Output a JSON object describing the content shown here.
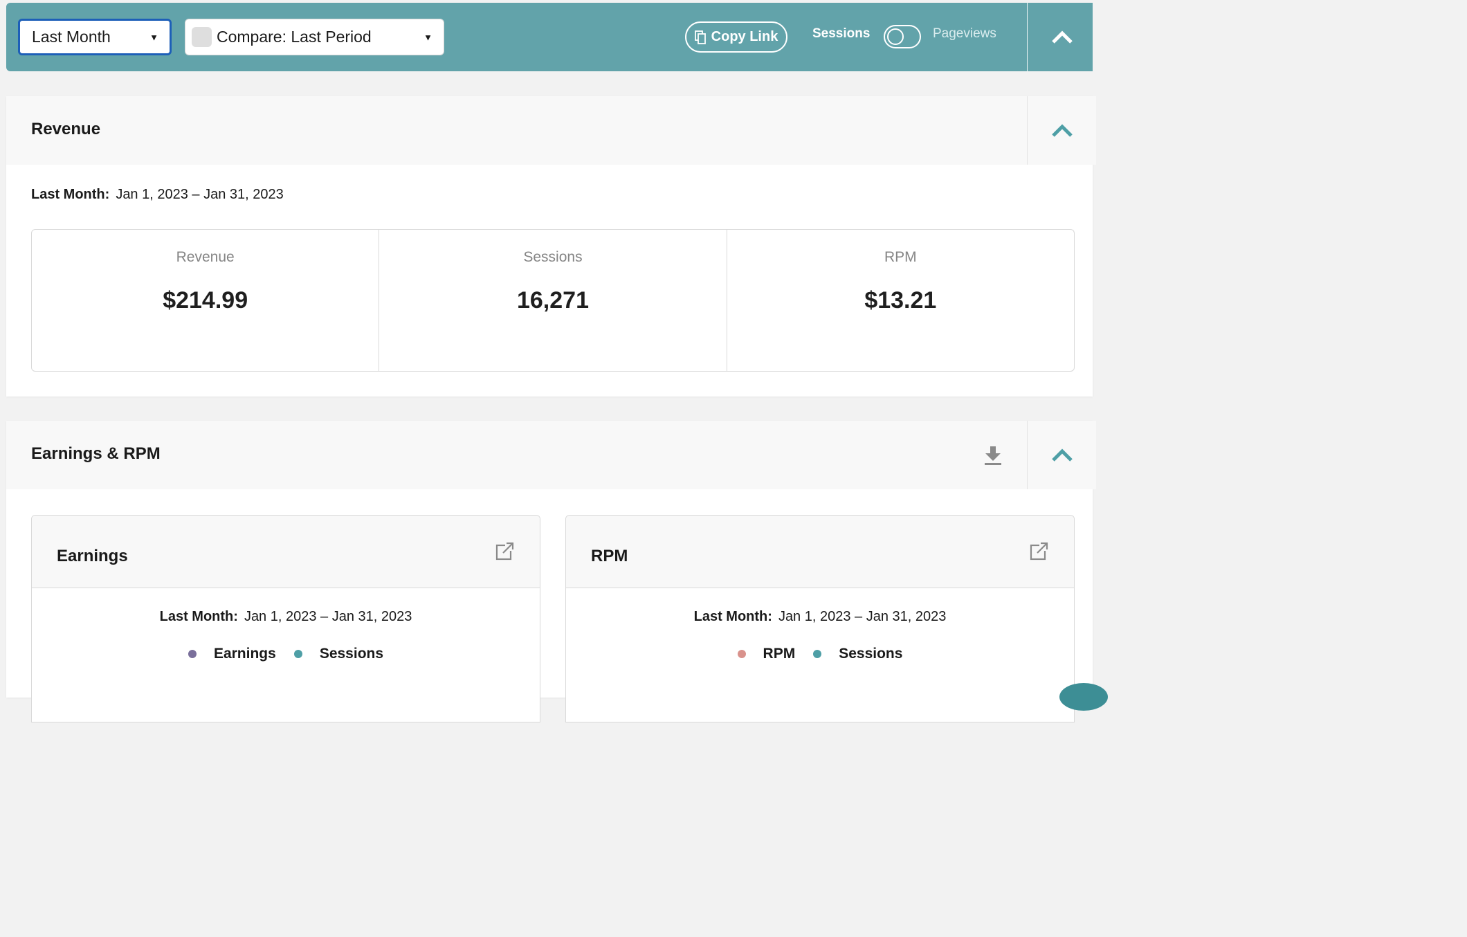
{
  "toolbar": {
    "period_select": "Last Month",
    "compare_select": "Compare: Last Period",
    "copy_link": "Copy Link",
    "toggle_left": "Sessions",
    "toggle_right": "Pageviews"
  },
  "revenue_card": {
    "title": "Revenue",
    "date_label": "Last Month:",
    "date_range": "Jan 1, 2023 – Jan 31, 2023",
    "kpis": [
      {
        "label": "Revenue",
        "value": "$214.99"
      },
      {
        "label": "Sessions",
        "value": "16,271"
      },
      {
        "label": "RPM",
        "value": "$13.21"
      }
    ]
  },
  "earnings_rpm_card": {
    "title": "Earnings & RPM",
    "earnings": {
      "title": "Earnings",
      "date_label": "Last Month:",
      "date_range": "Jan 1, 2023 – Jan 31, 2023",
      "legend": [
        {
          "label": "Earnings",
          "color": "#7a6f9b"
        },
        {
          "label": "Sessions",
          "color": "#4e9fa6"
        }
      ]
    },
    "rpm": {
      "title": "RPM",
      "date_label": "Last Month:",
      "date_range": "Jan 1, 2023 – Jan 31, 2023",
      "legend": [
        {
          "label": "RPM",
          "color": "#d9928c"
        },
        {
          "label": "Sessions",
          "color": "#4e9fa6"
        }
      ]
    }
  },
  "colors": {
    "toolbar_bg": "#62a3aa",
    "accent": "#4e9fa6",
    "focus": "#1d5fb8"
  },
  "icons": {
    "copy": "copy-icon",
    "collapse": "chevron-up-icon",
    "download": "download-icon",
    "external": "external-link-icon"
  }
}
